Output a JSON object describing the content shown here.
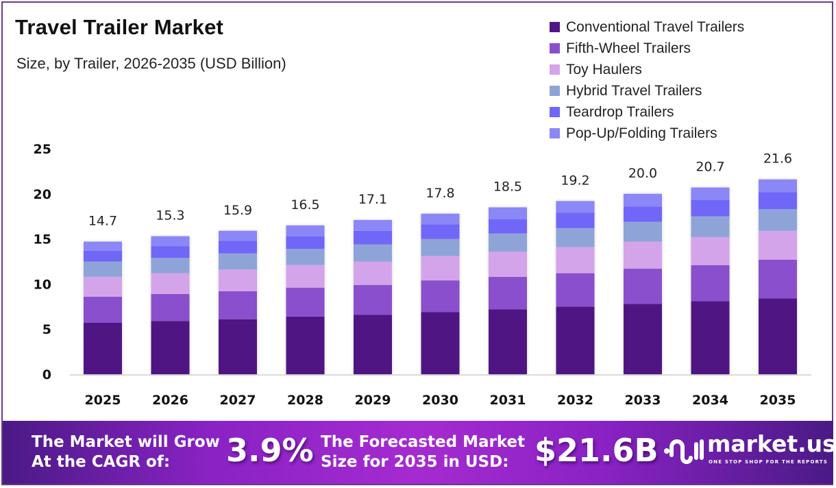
{
  "chart_data": {
    "type": "bar",
    "stacked": true,
    "title": "Travel Trailer Market",
    "subtitle": "Size, by Trailer, 2026-2035 (USD Billion)",
    "xlabel": "",
    "ylabel": "",
    "ylim": [
      0,
      25
    ],
    "yticks": [
      0,
      5,
      10,
      15,
      20,
      25
    ],
    "grid": false,
    "legend_position": "top-right",
    "categories": [
      "2025",
      "2026",
      "2027",
      "2028",
      "2029",
      "2030",
      "2031",
      "2032",
      "2033",
      "2034",
      "2035"
    ],
    "totals": [
      14.7,
      15.3,
      15.9,
      16.5,
      17.1,
      17.8,
      18.5,
      19.2,
      20.0,
      20.7,
      21.6
    ],
    "total_labels": [
      "14.7",
      "15.3",
      "15.9",
      "16.5",
      "17.1",
      "17.8",
      "18.5",
      "19.2",
      "20.0",
      "20.7",
      "21.6"
    ],
    "series": [
      {
        "name": "Conventional Travel Trailers",
        "color": "#4f1783",
        "values": [
          5.7,
          5.9,
          6.1,
          6.4,
          6.6,
          6.9,
          7.2,
          7.5,
          7.8,
          8.1,
          8.4
        ]
      },
      {
        "name": "Fifth-Wheel Trailers",
        "color": "#8a4fcc",
        "values": [
          2.9,
          3.0,
          3.1,
          3.2,
          3.3,
          3.5,
          3.6,
          3.7,
          3.9,
          4.0,
          4.3
        ]
      },
      {
        "name": "Toy Haulers",
        "color": "#d4a4ea",
        "values": [
          2.2,
          2.3,
          2.4,
          2.5,
          2.6,
          2.7,
          2.8,
          2.9,
          3.0,
          3.1,
          3.2
        ]
      },
      {
        "name": "Hybrid Travel Trailers",
        "color": "#8ea4d8",
        "values": [
          1.7,
          1.7,
          1.8,
          1.8,
          1.9,
          1.9,
          2.0,
          2.1,
          2.2,
          2.3,
          2.4
        ]
      },
      {
        "name": "Teardrop Trailers",
        "color": "#7066f8",
        "values": [
          1.2,
          1.3,
          1.4,
          1.4,
          1.5,
          1.6,
          1.6,
          1.7,
          1.7,
          1.8,
          1.9
        ]
      },
      {
        "name": "Pop-Up/Folding Trailers",
        "color": "#8b87f6",
        "values": [
          1.0,
          1.1,
          1.1,
          1.2,
          1.2,
          1.2,
          1.3,
          1.3,
          1.4,
          1.4,
          1.4
        ]
      }
    ]
  },
  "banner": {
    "cagr_text_line1": "The Market will Grow",
    "cagr_text_line2": "At the CAGR of:",
    "cagr_value": "3.9%",
    "forecast_text_line1": "The Forecasted Market",
    "forecast_text_line2": "Size for 2035 in USD:",
    "forecast_value": "$21.6B",
    "logo_name": "market.us",
    "logo_tagline": "ONE STOP SHOP FOR THE REPORTS"
  }
}
